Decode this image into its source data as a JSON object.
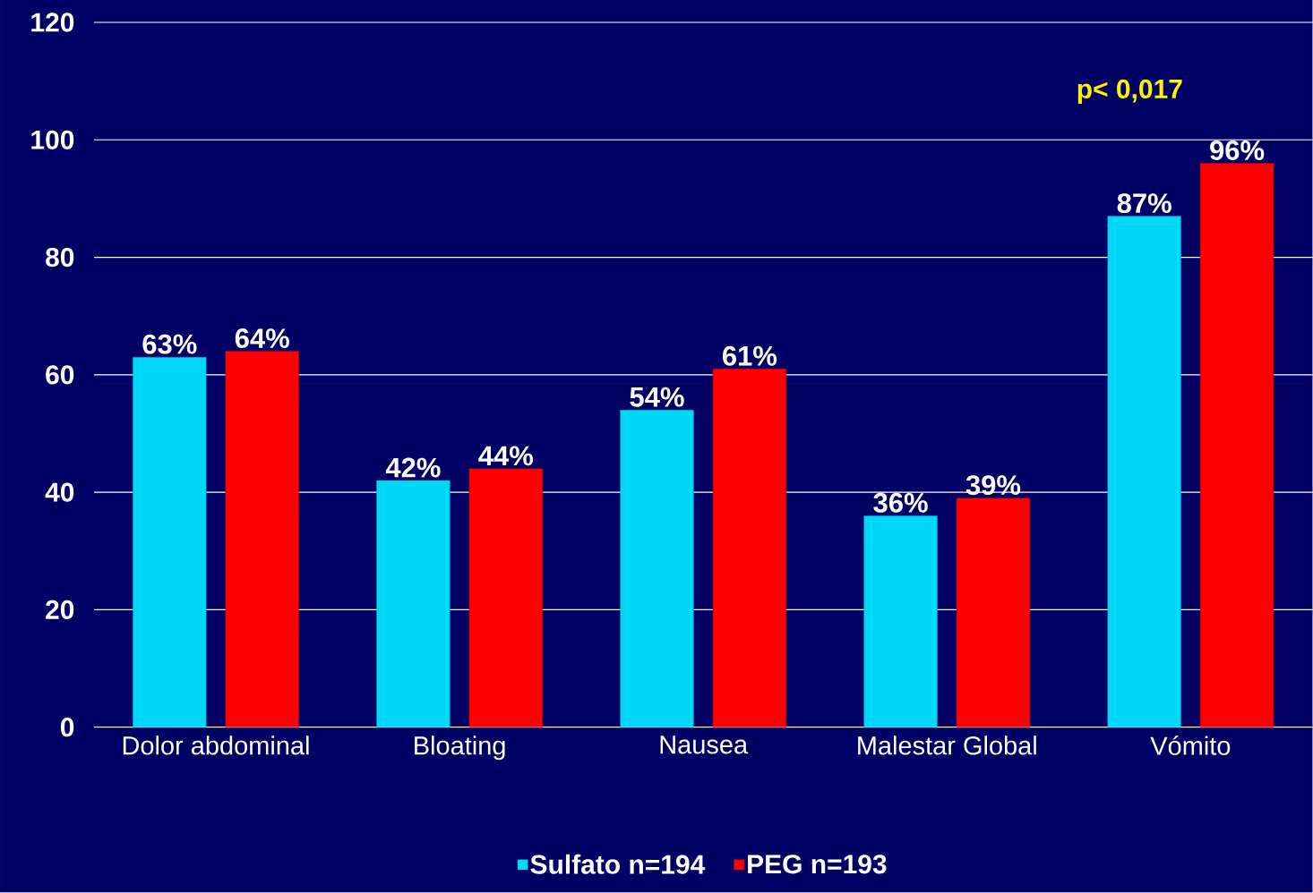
{
  "chart_data": {
    "type": "bar",
    "categories": [
      "Dolor abdominal",
      "Bloating",
      "Nausea",
      "Malestar Global",
      "Vómito"
    ],
    "series": [
      {
        "name": "Sulfato n=194",
        "color": "#00d8f8",
        "values": [
          63,
          42,
          54,
          36,
          87
        ],
        "value_labels": [
          "63%",
          "42%",
          "54%",
          "36%",
          "87%"
        ]
      },
      {
        "name": "PEG n=193",
        "color": "#ff0000",
        "values": [
          64,
          44,
          61,
          39,
          96
        ],
        "value_labels": [
          "64%",
          "44%",
          "61%",
          "39%",
          "96%"
        ]
      }
    ],
    "ylim": [
      0,
      120
    ],
    "yticks": [
      0,
      20,
      40,
      60,
      80,
      100,
      120
    ],
    "grid": "y",
    "legend": "bottom",
    "annotations": [
      "p< 0,017"
    ]
  }
}
